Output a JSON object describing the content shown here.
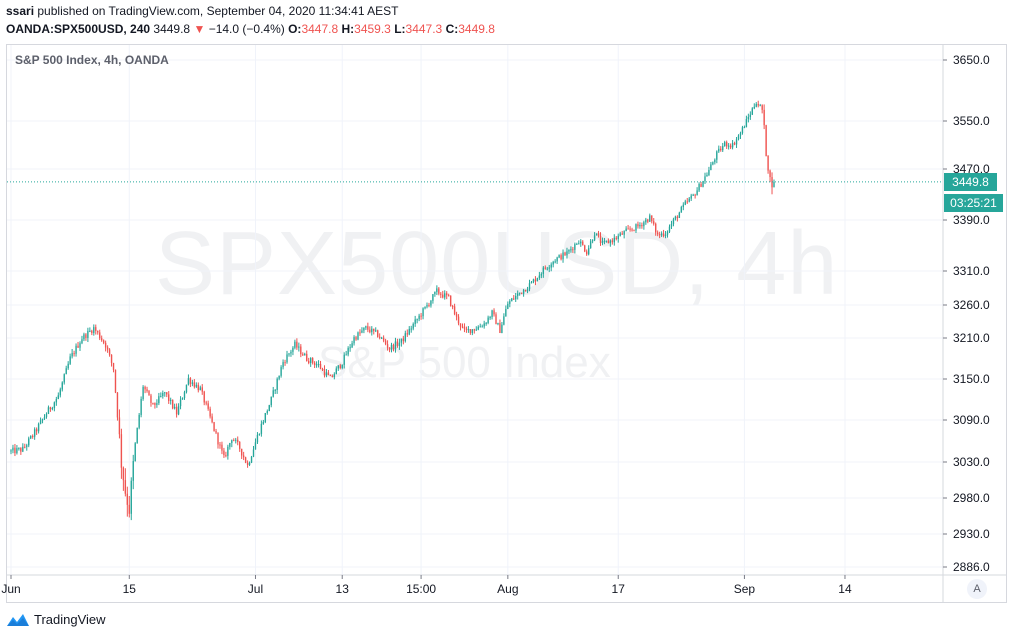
{
  "header": {
    "user": "ssari",
    "published_text": "published on TradingView.com, September 04, 2020 11:34:41 AEST",
    "symbol": "OANDA:SPX500USD, 240",
    "last": "3449.8",
    "change_arrow": "▼",
    "change": "−14.0 (−0.4%)",
    "o_label": "O:",
    "o_value": "3447.8",
    "h_label": "H:",
    "h_value": "3459.3",
    "l_label": "L:",
    "l_value": "3447.3",
    "c_label": "C:",
    "c_value": "3449.8"
  },
  "legend": {
    "series_title": "S&P 500 Index, 4h, OANDA"
  },
  "watermark": {
    "symbol": "SPX500USD, 4h",
    "description": "S&P 500 Index"
  },
  "price_tag": {
    "price": "3449.8",
    "countdown": "03:25:21"
  },
  "auto_scale": {
    "label": "A"
  },
  "footer": {
    "brand": "TradingView",
    "icon": "tradingview-logo-icon"
  },
  "colors": {
    "up": "#26a69a",
    "down": "#ef5350",
    "grid": "#f0f3fa",
    "price_line": "#26a69a"
  },
  "chart_data": {
    "type": "candlestick",
    "title": "S&P 500 Index, 4h, OANDA",
    "yticks": [
      3650.0,
      3550.0,
      3470.0,
      3390.0,
      3310.0,
      3260.0,
      3210.0,
      3150.0,
      3090.0,
      3030.0,
      2980.0,
      2930.0,
      2886.0
    ],
    "ylim": [
      2886,
      3650
    ],
    "ylabel_format": "fixed1",
    "xticks": [
      {
        "label": "Jun",
        "bar": 0
      },
      {
        "label": "15",
        "bar": 60
      },
      {
        "label": "Jul",
        "bar": 124
      },
      {
        "label": "13",
        "bar": 168
      },
      {
        "label": "15:00",
        "bar": 208
      },
      {
        "label": "Aug",
        "bar": 252
      },
      {
        "label": "17",
        "bar": 308
      },
      {
        "label": "Sep",
        "bar": 372
      },
      {
        "label": "14",
        "bar": 423
      }
    ],
    "total_bars": 470,
    "grid": true,
    "last_price": 3449.8,
    "anchors": [
      [
        0,
        3045
      ],
      [
        6,
        3048
      ],
      [
        12,
        3072
      ],
      [
        18,
        3100
      ],
      [
        24,
        3125
      ],
      [
        30,
        3180
      ],
      [
        36,
        3210
      ],
      [
        42,
        3225
      ],
      [
        48,
        3200
      ],
      [
        52,
        3165
      ],
      [
        56,
        3030
      ],
      [
        58,
        2990
      ],
      [
        60,
        2965
      ],
      [
        63,
        3055
      ],
      [
        67,
        3140
      ],
      [
        72,
        3110
      ],
      [
        78,
        3130
      ],
      [
        84,
        3100
      ],
      [
        90,
        3150
      ],
      [
        96,
        3135
      ],
      [
        102,
        3085
      ],
      [
        108,
        3035
      ],
      [
        112,
        3065
      ],
      [
        116,
        3050
      ],
      [
        120,
        3025
      ],
      [
        126,
        3075
      ],
      [
        132,
        3120
      ],
      [
        138,
        3175
      ],
      [
        144,
        3200
      ],
      [
        150,
        3180
      ],
      [
        156,
        3170
      ],
      [
        162,
        3150
      ],
      [
        168,
        3175
      ],
      [
        174,
        3210
      ],
      [
        180,
        3225
      ],
      [
        186,
        3215
      ],
      [
        192,
        3195
      ],
      [
        198,
        3205
      ],
      [
        204,
        3230
      ],
      [
        210,
        3255
      ],
      [
        216,
        3280
      ],
      [
        222,
        3270
      ],
      [
        226,
        3240
      ],
      [
        230,
        3220
      ],
      [
        236,
        3225
      ],
      [
        240,
        3232
      ],
      [
        244,
        3248
      ],
      [
        248,
        3222
      ],
      [
        252,
        3262
      ],
      [
        258,
        3278
      ],
      [
        264,
        3292
      ],
      [
        270,
        3312
      ],
      [
        276,
        3328
      ],
      [
        282,
        3338
      ],
      [
        288,
        3358
      ],
      [
        292,
        3340
      ],
      [
        296,
        3370
      ],
      [
        300,
        3352
      ],
      [
        306,
        3360
      ],
      [
        312,
        3372
      ],
      [
        318,
        3380
      ],
      [
        324,
        3394
      ],
      [
        328,
        3366
      ],
      [
        332,
        3370
      ],
      [
        336,
        3388
      ],
      [
        342,
        3415
      ],
      [
        346,
        3428
      ],
      [
        350,
        3447
      ],
      [
        354,
        3468
      ],
      [
        358,
        3495
      ],
      [
        362,
        3512
      ],
      [
        366,
        3510
      ],
      [
        370,
        3530
      ],
      [
        374,
        3556
      ],
      [
        378,
        3582
      ],
      [
        381,
        3568
      ],
      [
        383,
        3500
      ],
      [
        385,
        3452
      ],
      [
        387,
        3449.8
      ]
    ]
  }
}
